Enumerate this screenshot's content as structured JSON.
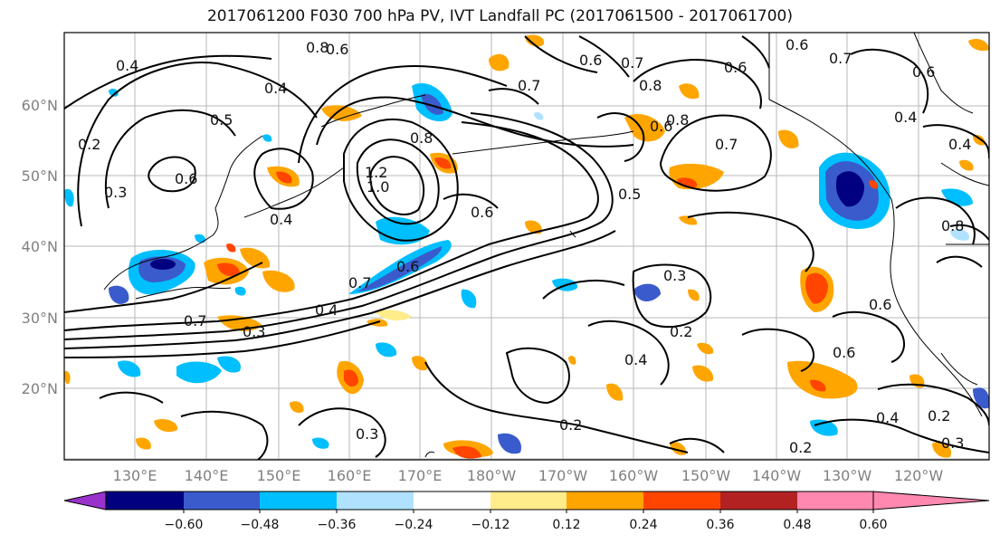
{
  "title": "2017061200 F030 700 hPa PV, IVT Landfall PC (2017061500 - 2017061700)",
  "lat_labels": [
    "60°N",
    "50°N",
    "40°N",
    "30°N",
    "20°N"
  ],
  "lon_labels": [
    "130°E",
    "140°E",
    "150°E",
    "160°E",
    "170°E",
    "180°W",
    "170°W",
    "160°W",
    "150°W",
    "140°W",
    "130°W",
    "120°W"
  ],
  "colorbar": {
    "ticks": [
      "−0.60",
      "−0.48",
      "−0.36",
      "−0.24",
      "−0.12",
      "0.12",
      "0.24",
      "0.36",
      "0.48",
      "0.60"
    ],
    "colors": [
      "#9932CC",
      "#000080",
      "#3A5BCB",
      "#00BFFF",
      "#B0E2FF",
      "#FFFFFF",
      "#FFEC8B",
      "#FFA500",
      "#FF4500",
      "#B22222",
      "#FF88B0"
    ]
  },
  "contour_labels": [
    "0.4",
    "0.6",
    "0.8",
    "0.4",
    "0.5",
    "0.2",
    "0.6",
    "0.3",
    "0.4",
    "0.8",
    "1.2",
    "1.0",
    "0.6",
    "0.7",
    "0.6",
    "0.4",
    "0.7",
    "0.3",
    "0.5",
    "0.7",
    "0.6",
    "0.7",
    "0.8",
    "0.6",
    "0.8",
    "0.6",
    "0.7",
    "0.6",
    "0.4",
    "0.7",
    "0.4",
    "0.6",
    "0.3",
    "0.2",
    "0.4",
    "0.6",
    "0.4",
    "0.2",
    "0.2",
    "0.2",
    "0.3",
    "0.3",
    "0.8",
    "0.6"
  ]
}
